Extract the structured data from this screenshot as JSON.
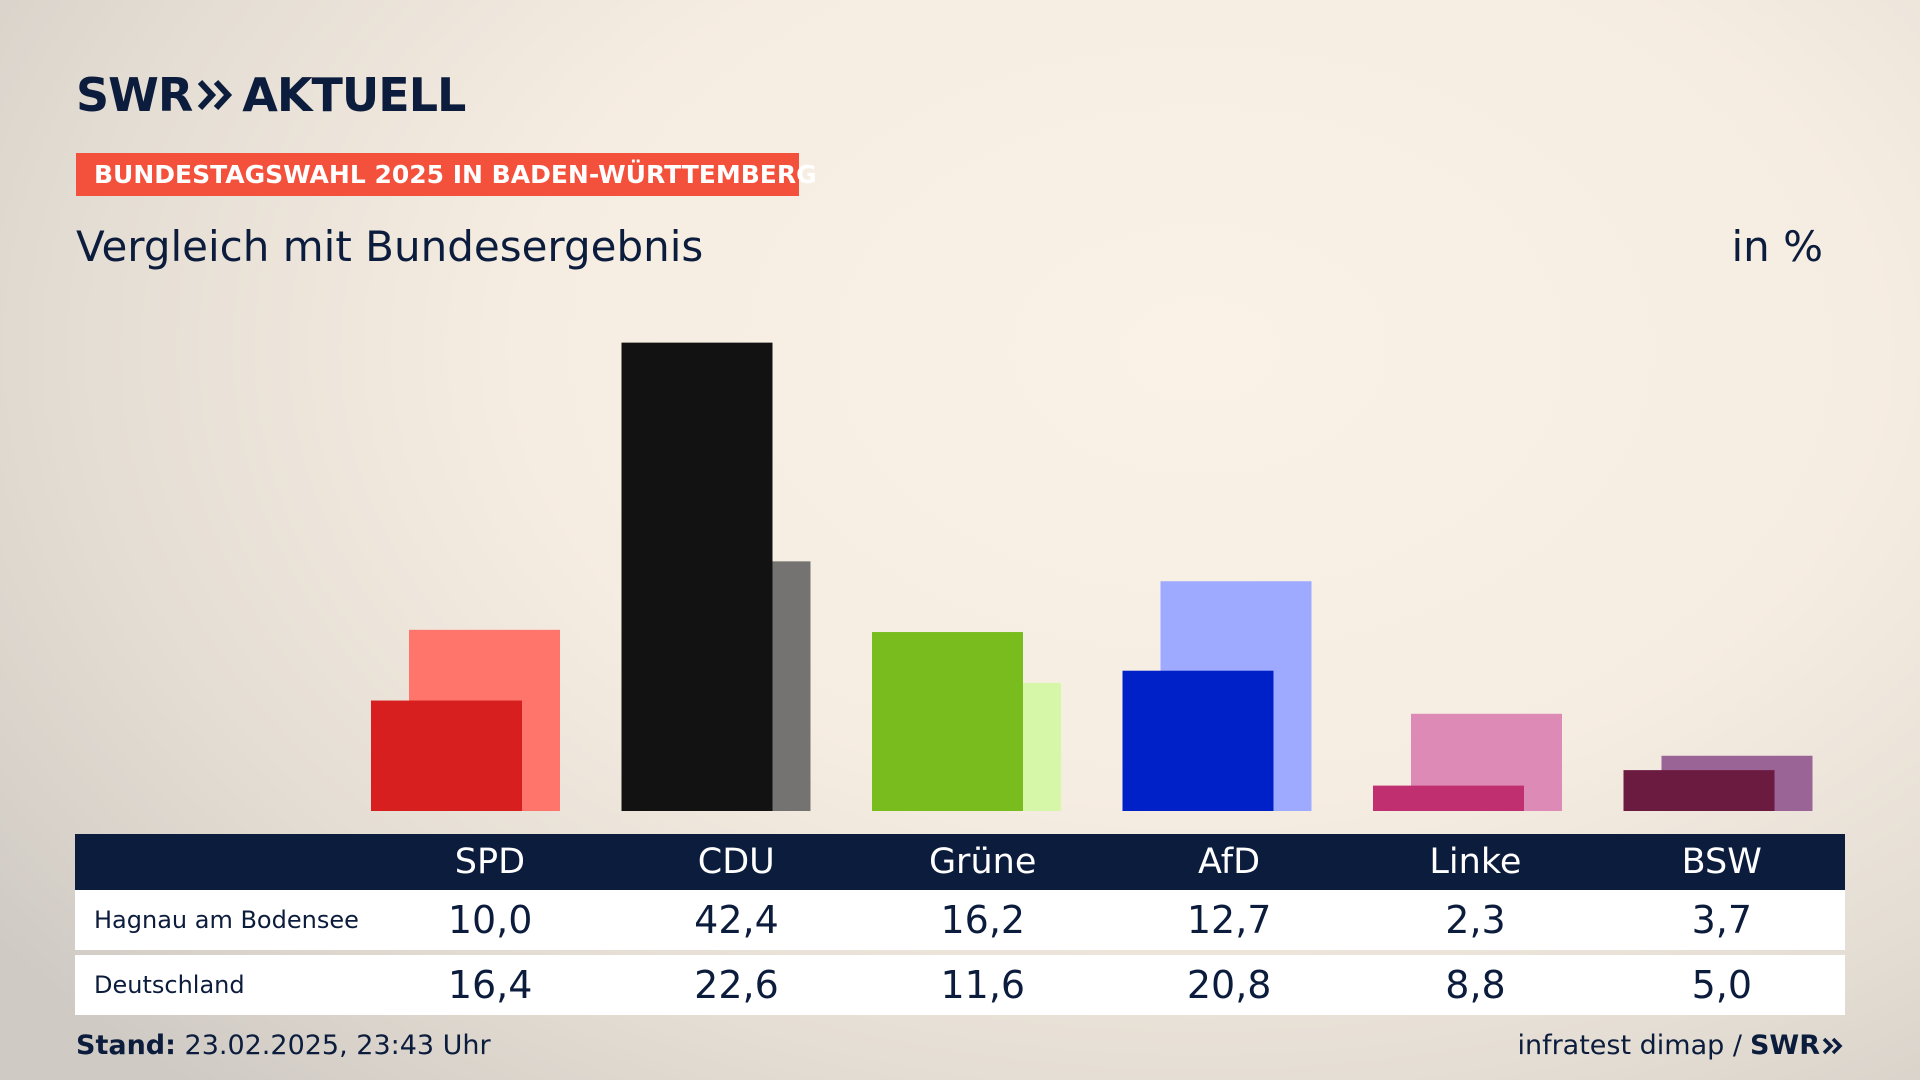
{
  "header": {
    "brand_prefix": "SWR",
    "brand_suffix": "AKTUELL",
    "banner": "BUNDESTAGSWAHL 2025 IN BADEN-WÜRTTEMBERG",
    "subtitle": "Vergleich mit Bundesergebnis",
    "unit": "in %"
  },
  "chart_data": {
    "type": "bar",
    "categories": [
      "SPD",
      "CDU",
      "Grüne",
      "AfD",
      "Linke",
      "BSW"
    ],
    "series": [
      {
        "name": "Hagnau am Bodensee",
        "values": [
          10.0,
          42.4,
          16.2,
          12.7,
          2.3,
          3.7
        ],
        "labels": [
          "10,0",
          "42,4",
          "16,2",
          "12,7",
          "2,3",
          "3,7"
        ]
      },
      {
        "name": "Deutschland",
        "values": [
          16.4,
          22.6,
          11.6,
          20.8,
          8.8,
          5.0
        ],
        "labels": [
          "16,4",
          "22,6",
          "11,6",
          "20,8",
          "8,8",
          "5,0"
        ]
      }
    ],
    "colors_primary": [
      "#d81f1f",
      "#121212",
      "#78bc1e",
      "#0020c8",
      "#c03070",
      "#6b1a40"
    ],
    "colors_secondary": [
      "#ff756c",
      "#757371",
      "#d6f7a8",
      "#9daaff",
      "#de8ab6",
      "#9a6496"
    ],
    "ylim": [
      0,
      43
    ]
  },
  "footer": {
    "stand_label": "Stand:",
    "stand_value": "23.02.2025, 23:43 Uhr",
    "source": "infratest dimap /",
    "source_brand": "SWR"
  }
}
